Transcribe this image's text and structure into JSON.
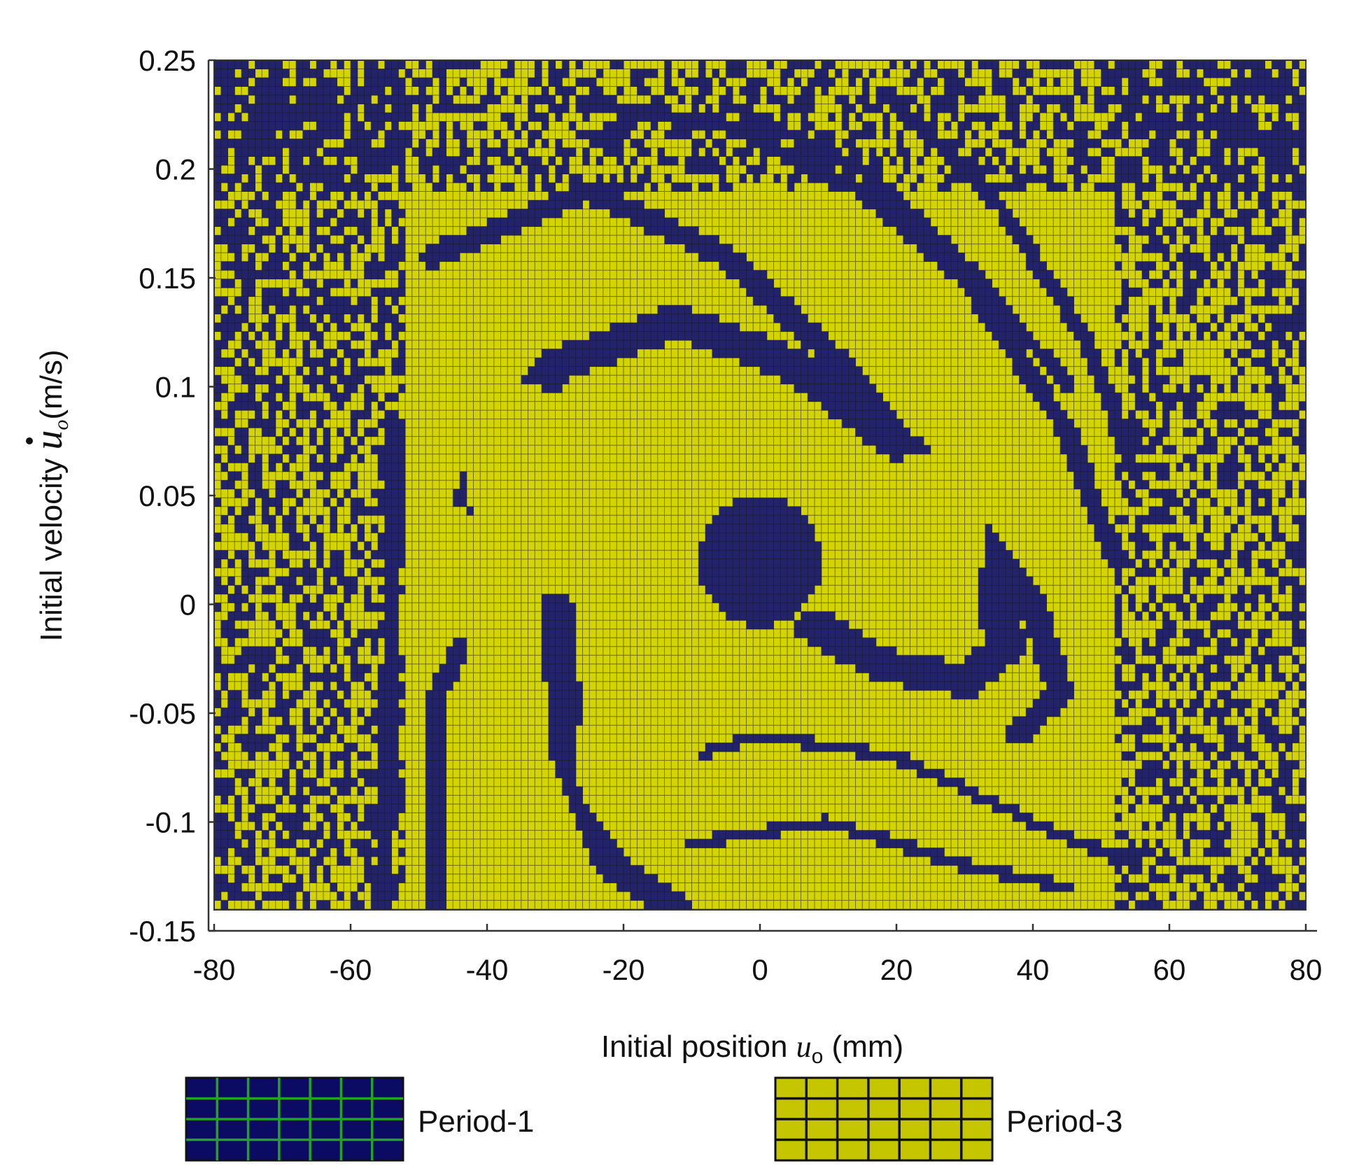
{
  "chart_data": {
    "type": "heatmap",
    "xlabel": {
      "text": "Initial position ",
      "symbol": "u",
      "subscript": "o",
      "unit": " (mm)"
    },
    "ylabel": {
      "text": "Initial velocity ",
      "symbol": "u",
      "subscript": "o",
      "unit": "(m/s)"
    },
    "xlim": [
      -80,
      80
    ],
    "ylim": [
      -0.15,
      0.25
    ],
    "data_y_range": [
      -0.14,
      0.25
    ],
    "xticks": [
      "-80",
      "-60",
      "-40",
      "-20",
      "0",
      "20",
      "40",
      "60",
      "80"
    ],
    "yticks": [
      "-0.15",
      "-0.1",
      "-0.05",
      "0",
      "0.05",
      "0.1",
      "0.15",
      "0.2",
      "0.25"
    ],
    "grid_resolution": [
      160,
      97
    ],
    "grid_lines": true,
    "categories": [
      {
        "name": "Period-1",
        "color": "#23236b"
      },
      {
        "name": "Period-3",
        "color": "#d4d400"
      }
    ],
    "background_category": "Period-3",
    "regions_period1": [
      {
        "shape": "polyline-band",
        "points": [
          [
            -42,
            0.05
          ],
          [
            -30,
            0.11
          ],
          [
            -12,
            0.13
          ],
          [
            5,
            0.11
          ],
          [
            22,
            0.07
          ],
          [
            34,
            0.02
          ],
          [
            36,
            -0.02
          ],
          [
            30,
            -0.035
          ],
          [
            18,
            -0.028
          ],
          [
            8,
            -0.01
          ]
        ],
        "width_mm": 6
      },
      {
        "shape": "polyline-band",
        "points": [
          [
            -48,
            0.16
          ],
          [
            -25,
            0.19
          ],
          [
            -5,
            0.16
          ],
          [
            12,
            0.11
          ],
          [
            25,
            0.06
          ],
          [
            40,
            0.0
          ],
          [
            44,
            -0.04
          ],
          [
            38,
            -0.06
          ]
        ],
        "width_mm": 4
      },
      {
        "shape": "polyline-band",
        "points": [
          [
            -30,
            0.0
          ],
          [
            -28,
            -0.07
          ],
          [
            -22,
            -0.12
          ],
          [
            -12,
            -0.14
          ]
        ],
        "width_mm": 5
      },
      {
        "shape": "polyline-band",
        "points": [
          [
            -25,
            0.23
          ],
          [
            -5,
            0.22
          ],
          [
            15,
            0.19
          ],
          [
            30,
            0.15
          ],
          [
            45,
            0.08
          ],
          [
            52,
            0.02
          ]
        ],
        "width_mm": 3
      },
      {
        "shape": "polyline-band",
        "points": [
          [
            -5,
            0.23
          ],
          [
            15,
            0.2
          ],
          [
            32,
            0.15
          ],
          [
            45,
            0.1
          ]
        ],
        "width_mm": 2.5
      },
      {
        "shape": "polyline-band",
        "points": [
          [
            20,
            0.23
          ],
          [
            36,
            0.18
          ],
          [
            48,
            0.12
          ],
          [
            55,
            0.06
          ]
        ],
        "width_mm": 2.5
      },
      {
        "shape": "polyline-band",
        "points": [
          [
            -20,
            -0.08
          ],
          [
            0,
            -0.06
          ],
          [
            20,
            -0.07
          ],
          [
            40,
            -0.1
          ],
          [
            55,
            -0.12
          ]
        ],
        "width_mm": 2
      },
      {
        "shape": "polyline-band",
        "points": [
          [
            -10,
            -0.11
          ],
          [
            10,
            -0.1
          ],
          [
            30,
            -0.12
          ],
          [
            45,
            -0.13
          ]
        ],
        "width_mm": 2
      },
      {
        "shape": "polyline-band",
        "points": [
          [
            -55,
            -0.14
          ],
          [
            -54,
            0.0
          ],
          [
            -53,
            0.08
          ]
        ],
        "width_mm": 2.5
      },
      {
        "shape": "polyline-band",
        "points": [
          [
            -48,
            -0.14
          ],
          [
            -47,
            -0.04
          ],
          [
            -44,
            -0.02
          ]
        ],
        "width_mm": 3
      },
      {
        "shape": "ellipse",
        "cx": 0,
        "cy": 0.02,
        "rx": 9,
        "ry": 0.03
      }
    ],
    "regions_period3": [
      {
        "shape": "ellipse",
        "cx": -34,
        "cy": 0.06,
        "rx": 9,
        "ry": 0.04
      },
      {
        "shape": "ellipse",
        "cx": -18,
        "cy": -0.07,
        "rx": 9,
        "ry": 0.04
      },
      {
        "shape": "ellipse",
        "cx": 24,
        "cy": 0.03,
        "rx": 9,
        "ry": 0.04
      }
    ],
    "noise_zones": [
      {
        "x": [
          -80,
          -52
        ],
        "y": [
          -0.14,
          0.25
        ],
        "period1_fraction": 0.5
      },
      {
        "x": [
          52,
          80
        ],
        "y": [
          -0.14,
          0.25
        ],
        "period1_fraction": 0.45
      },
      {
        "x": [
          -80,
          80
        ],
        "y": [
          0.19,
          0.25
        ],
        "period1_fraction": 0.45
      }
    ],
    "legend": [
      {
        "label": "Period-1",
        "fill": "#0b0b63",
        "line_color": "#22a322"
      },
      {
        "label": "Period-3",
        "fill": "#c6c600",
        "line_color": "#111111"
      }
    ],
    "legend_position": "bottom"
  }
}
